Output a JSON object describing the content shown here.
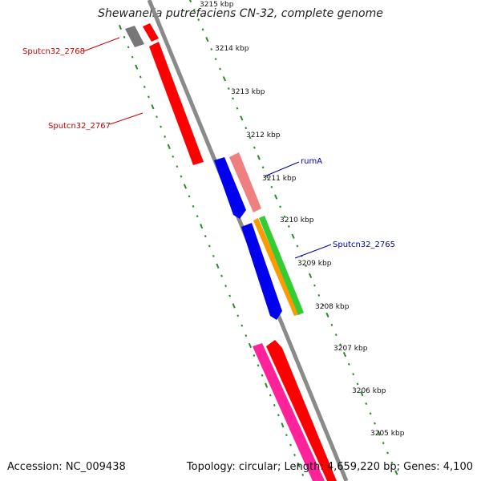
{
  "title": "Shewanella putrefaciens CN-32, complete genome",
  "footer": {
    "accession": "Accession: NC_009438",
    "summary": "Topology: circular; Length: 4,659,220 bp; Genes: 4,100"
  },
  "ticks": [
    "3215 kbp",
    "3214 kbp",
    "3213 kbp",
    "3212 kbp",
    "3211 kbp",
    "3210 kbp",
    "3209 kbp",
    "3208 kbp",
    "3207 kbp",
    "3206 kbp",
    "3205 kbp"
  ],
  "gene_labels": [
    {
      "text": "Sputcn32_2768",
      "color": "#cc0000"
    },
    {
      "text": "Sputcn32_2767",
      "color": "#cc0000"
    },
    {
      "text": "rumA",
      "color": "#0000aa"
    },
    {
      "text": "Sputcn32_2765",
      "color": "#0000aa"
    }
  ],
  "colors": {
    "backbone": "#8a8a8a",
    "tick": "#2a8a2a",
    "red": "#ff0000",
    "salmon": "#f08080",
    "blue": "#0000ee",
    "green": "#33cc33",
    "orange": "#ff9900",
    "pink": "#ff2299",
    "grey": "#777777"
  }
}
